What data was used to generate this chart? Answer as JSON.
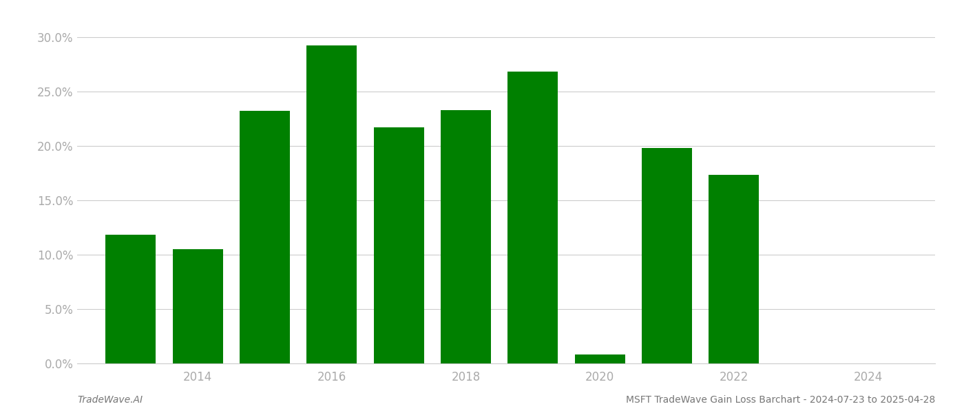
{
  "years": [
    2013,
    2014,
    2015,
    2016,
    2017,
    2018,
    2019,
    2020,
    2021,
    2022,
    2023
  ],
  "values": [
    0.118,
    0.105,
    0.232,
    0.292,
    0.217,
    0.233,
    0.268,
    0.008,
    0.198,
    0.173,
    0.0
  ],
  "bar_color": "#008000",
  "background_color": "#ffffff",
  "title": "MSFT TradeWave Gain Loss Barchart - 2024-07-23 to 2025-04-28",
  "footer_left": "TradeWave.AI",
  "ylim": [
    0,
    0.315
  ],
  "yticks": [
    0.0,
    0.05,
    0.1,
    0.15,
    0.2,
    0.25,
    0.3
  ],
  "xticks": [
    2014,
    2016,
    2018,
    2020,
    2022,
    2024
  ],
  "xlim": [
    2012.2,
    2025.0
  ],
  "bar_width": 0.75,
  "grid_color": "#cccccc",
  "tick_label_color": "#aaaaaa",
  "footer_color": "#777777",
  "footer_fontsize": 10,
  "tick_fontsize": 12
}
